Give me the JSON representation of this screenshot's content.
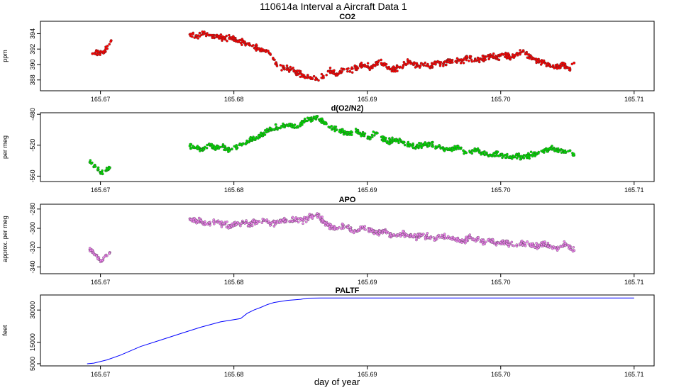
{
  "figure": {
    "title": "110614a   Interval a Aircraft Data 1",
    "xlabel": "day of year",
    "x_ticks": [
      "165.67",
      "165.68",
      "165.69",
      "165.70",
      "165.71"
    ]
  },
  "colors": {
    "co2": "#ff0000",
    "o2n2": "#00e000",
    "apo": "#ee82ee",
    "paltf": "#0000ff",
    "axis": "#000000"
  },
  "chart_data": [
    {
      "type": "scatter",
      "title": "CO2",
      "ylabel": "ppm",
      "xlim": [
        165.6655,
        165.7115
      ],
      "ylim": [
        386.6,
        395.6
      ],
      "y_ticks": [
        "388",
        "390",
        "392",
        "394"
      ],
      "y_tick_values": [
        388,
        390,
        392,
        394
      ],
      "series": [
        {
          "name": "CO2",
          "x": [
            165.6694,
            165.6698,
            165.6703,
            165.6708,
            165.6767,
            165.6772,
            165.6777,
            165.6782,
            165.6787,
            165.6792,
            165.6797,
            165.6802,
            165.6807,
            165.6812,
            165.6817,
            165.6822,
            165.6827,
            165.6832,
            165.6837,
            165.6842,
            165.6847,
            165.6852,
            165.6857,
            165.6862,
            165.6867,
            165.6872,
            165.6877,
            165.6882,
            165.6887,
            165.6892,
            165.6897,
            165.6902,
            165.6907,
            165.6912,
            165.6917,
            165.6922,
            165.6927,
            165.6932,
            165.6937,
            165.6942,
            165.6947,
            165.6952,
            165.6957,
            165.6962,
            165.6967,
            165.6972,
            165.6977,
            165.6982,
            165.6987,
            165.6992,
            165.6997,
            165.7002,
            165.7007,
            165.7012,
            165.7017,
            165.7022,
            165.7027,
            165.7032,
            165.7037,
            165.7042,
            165.7047,
            165.7052,
            165.7055
          ],
          "y": [
            391.4,
            391.5,
            391.6,
            393.1,
            393.9,
            393.7,
            394.0,
            393.8,
            393.6,
            393.4,
            393.5,
            393.1,
            392.9,
            392.5,
            392.2,
            391.8,
            391.4,
            390.0,
            389.6,
            389.3,
            389.0,
            388.6,
            388.3,
            388.1,
            388.5,
            389.2,
            388.7,
            389.4,
            389.1,
            389.7,
            389.9,
            389.6,
            390.3,
            390.1,
            389.4,
            389.6,
            389.9,
            390.4,
            389.8,
            390.0,
            389.6,
            390.3,
            390.1,
            390.6,
            390.4,
            390.6,
            390.9,
            390.5,
            390.8,
            391.2,
            390.8,
            391.3,
            390.9,
            391.4,
            391.7,
            391.0,
            390.6,
            390.3,
            389.8,
            389.7,
            389.9,
            389.4,
            390.2
          ]
        }
      ]
    },
    {
      "type": "scatter",
      "title": "d(O2/N2)",
      "ylabel": "per meg",
      "xlim": [
        165.6655,
        165.7115
      ],
      "ylim": [
        -567,
        -478
      ],
      "y_ticks": [
        "-560",
        "-520",
        "-480"
      ],
      "y_tick_values": [
        -560,
        -520,
        -480
      ],
      "series": [
        {
          "name": "d(O2/N2)",
          "x": [
            165.6692,
            165.6695,
            165.6698,
            165.6701,
            165.6704,
            165.6707,
            165.6767,
            165.6772,
            165.6777,
            165.6782,
            165.6787,
            165.6792,
            165.6797,
            165.6802,
            165.6807,
            165.6812,
            165.6817,
            165.6822,
            165.6827,
            165.6832,
            165.6837,
            165.6842,
            165.6847,
            165.6852,
            165.6857,
            165.6862,
            165.6867,
            165.6872,
            165.6877,
            165.6882,
            165.6887,
            165.6892,
            165.6897,
            165.6902,
            165.6907,
            165.6912,
            165.6917,
            165.6922,
            165.6927,
            165.6932,
            165.6937,
            165.6942,
            165.6947,
            165.6952,
            165.6957,
            165.6962,
            165.6967,
            165.6972,
            165.6977,
            165.6982,
            165.6987,
            165.6992,
            165.6997,
            165.7002,
            165.7007,
            165.7012,
            165.7017,
            165.7022,
            165.7027,
            165.7032,
            165.7037,
            165.7042,
            165.7047,
            165.7052,
            165.7055
          ],
          "y": [
            -542,
            -548,
            -552,
            -556,
            -553,
            -549,
            -521,
            -523,
            -525,
            -520,
            -524,
            -522,
            -526,
            -521,
            -518,
            -514,
            -510,
            -505,
            -499,
            -497,
            -496,
            -494,
            -497,
            -489,
            -486,
            -484,
            -491,
            -497,
            -500,
            -503,
            -505,
            -502,
            -507,
            -510,
            -504,
            -512,
            -516,
            -513,
            -517,
            -519,
            -522,
            -520,
            -518,
            -523,
            -524,
            -526,
            -522,
            -527,
            -529,
            -526,
            -531,
            -533,
            -530,
            -534,
            -535,
            -532,
            -536,
            -533,
            -531,
            -528,
            -524,
            -526,
            -529,
            -527,
            -533
          ]
        }
      ]
    },
    {
      "type": "scatter",
      "title": "APO",
      "ylabel": "approx. per meg",
      "xlim": [
        165.6655,
        165.7115
      ],
      "ylim": [
        -347,
        -275
      ],
      "y_ticks": [
        "-340",
        "-320",
        "-300",
        "-280"
      ],
      "y_tick_values": [
        -340,
        -320,
        -300,
        -280
      ],
      "series": [
        {
          "name": "APO",
          "x": [
            165.6692,
            165.6695,
            165.6698,
            165.6701,
            165.6704,
            165.6707,
            165.6767,
            165.6772,
            165.6777,
            165.6782,
            165.6787,
            165.6792,
            165.6797,
            165.6802,
            165.6807,
            165.6812,
            165.6817,
            165.6822,
            165.6827,
            165.6832,
            165.6837,
            165.6842,
            165.6847,
            165.6852,
            165.6857,
            165.6862,
            165.6867,
            165.6872,
            165.6877,
            165.6882,
            165.6887,
            165.6892,
            165.6897,
            165.6902,
            165.6907,
            165.6912,
            165.6917,
            165.6922,
            165.6927,
            165.6932,
            165.6937,
            165.6942,
            165.6947,
            165.6952,
            165.6957,
            165.6962,
            165.6967,
            165.6972,
            165.6977,
            165.6982,
            165.6987,
            165.6992,
            165.6997,
            165.7002,
            165.7007,
            165.7012,
            165.7017,
            165.7022,
            165.7027,
            165.7032,
            165.7037,
            165.7042,
            165.7047,
            165.7052,
            165.7055
          ],
          "y": [
            -322,
            -326,
            -330,
            -334,
            -328,
            -325,
            -290,
            -292,
            -294,
            -295,
            -293,
            -296,
            -297,
            -295,
            -294,
            -296,
            -293,
            -292,
            -295,
            -294,
            -291,
            -293,
            -290,
            -292,
            -288,
            -286,
            -293,
            -298,
            -300,
            -297,
            -301,
            -303,
            -299,
            -302,
            -305,
            -303,
            -306,
            -308,
            -305,
            -307,
            -309,
            -306,
            -310,
            -311,
            -308,
            -310,
            -312,
            -313,
            -310,
            -311,
            -314,
            -312,
            -315,
            -314,
            -316,
            -318,
            -315,
            -317,
            -319,
            -316,
            -318,
            -321,
            -317,
            -319,
            -323
          ]
        }
      ]
    },
    {
      "type": "line",
      "title": "PALTF",
      "ylabel": "feet",
      "xlim": [
        165.6655,
        165.7115
      ],
      "ylim": [
        4000,
        37000
      ],
      "y_ticks": [
        "5000",
        "15000",
        "30000"
      ],
      "y_tick_values": [
        5000,
        15000,
        30000
      ],
      "series": [
        {
          "name": "PALTF",
          "x": [
            165.669,
            165.6695,
            165.6705,
            165.6715,
            165.673,
            165.6745,
            165.676,
            165.6775,
            165.679,
            165.6805,
            165.681,
            165.6815,
            165.682,
            165.6825,
            165.683,
            165.684,
            165.685,
            165.6855,
            165.6865,
            165.69,
            165.695,
            165.7,
            165.705,
            165.71
          ],
          "y": [
            5000,
            5300,
            6800,
            9000,
            13000,
            16000,
            19000,
            22000,
            24500,
            26000,
            28500,
            30000,
            31200,
            32500,
            33500,
            34500,
            35000,
            35500,
            35600,
            35600,
            35600,
            35600,
            35600,
            35600
          ]
        }
      ]
    }
  ]
}
